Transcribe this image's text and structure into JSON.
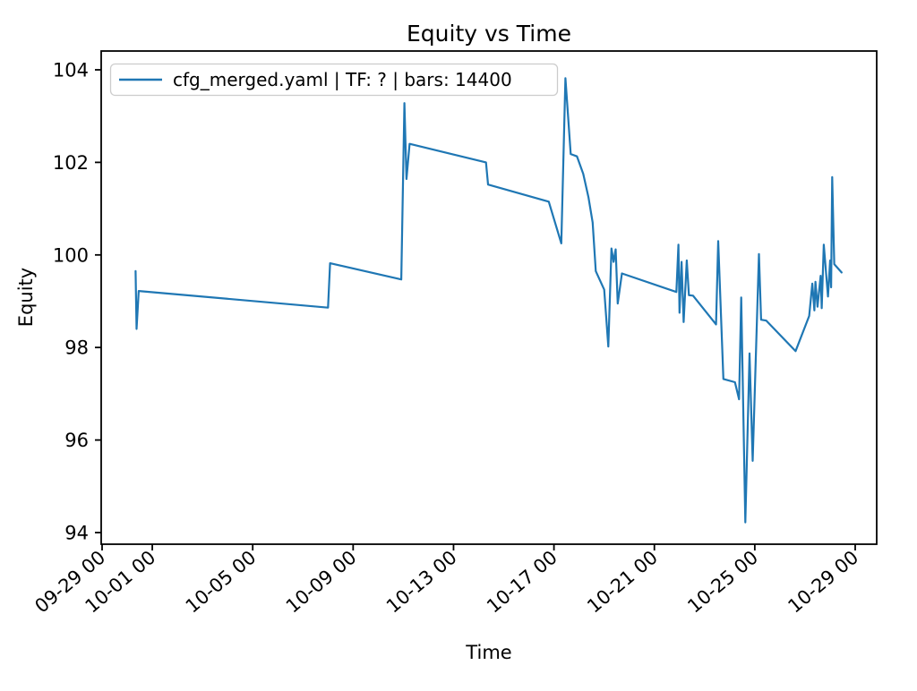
{
  "figure": {
    "background": "#ffffff"
  },
  "chart_data": {
    "type": "line",
    "title": "Equity vs Time",
    "xlabel": "Time",
    "ylabel": "Equity",
    "grid": false,
    "legend_position": "upper left",
    "legend_entries": [
      "cfg_merged.yaml | TF: ? | bars: 14400"
    ],
    "x_tick_labels": [
      "09-29 00",
      "10-01 00",
      "10-05 00",
      "10-09 00",
      "10-13 00",
      "10-17 00",
      "10-21 00",
      "10-25 00",
      "10-29 00"
    ],
    "y_tick_labels": [
      "94",
      "96",
      "98",
      "100",
      "102",
      "104"
    ],
    "y_ticks": [
      94,
      96,
      98,
      100,
      102,
      104
    ],
    "ylim": [
      93.74,
      104.42
    ],
    "xlim_days_from_0929": [
      -0.04,
      30.86
    ],
    "series": [
      {
        "name": "cfg_merged.yaml | TF: ? | bars: 14400",
        "color": "#1f77b4",
        "points": [
          [
            "09-30 08",
            99.65
          ],
          [
            "09-30 09",
            98.4
          ],
          [
            "09-30 11",
            99.22
          ],
          [
            "10-08 00",
            98.86
          ],
          [
            "10-08 02",
            99.82
          ],
          [
            "10-10 22",
            99.47
          ],
          [
            "10-11 01",
            103.28
          ],
          [
            "10-11 03",
            101.64
          ],
          [
            "10-11 06",
            102.4
          ],
          [
            "10-14 07",
            102.0
          ],
          [
            "10-14 09",
            101.52
          ],
          [
            "10-16 19",
            101.15
          ],
          [
            "10-17 07",
            100.25
          ],
          [
            "10-17 11",
            103.82
          ],
          [
            "10-17 16",
            102.18
          ],
          [
            "10-17 22",
            102.13
          ],
          [
            "10-18 04",
            101.75
          ],
          [
            "10-18 09",
            101.25
          ],
          [
            "10-18 13",
            100.7
          ],
          [
            "10-18 16",
            99.65
          ],
          [
            "10-19 00",
            99.25
          ],
          [
            "10-19 04",
            98.02
          ],
          [
            "10-19 07",
            100.14
          ],
          [
            "10-19 09",
            99.85
          ],
          [
            "10-19 11",
            100.12
          ],
          [
            "10-19 13",
            98.95
          ],
          [
            "10-19 17",
            99.6
          ],
          [
            "10-21 21",
            99.2
          ],
          [
            "10-21 23",
            100.22
          ],
          [
            "10-22 00",
            98.75
          ],
          [
            "10-22 02",
            99.85
          ],
          [
            "10-22 04",
            98.55
          ],
          [
            "10-22 07",
            99.88
          ],
          [
            "10-22 09",
            99.13
          ],
          [
            "10-22 13",
            99.12
          ],
          [
            "10-23 11",
            98.5
          ],
          [
            "10-23 13",
            100.3
          ],
          [
            "10-23 16",
            98.5
          ],
          [
            "10-23 18",
            97.32
          ],
          [
            "10-24 05",
            97.25
          ],
          [
            "10-24 09",
            96.88
          ],
          [
            "10-24 11",
            99.08
          ],
          [
            "10-24 15",
            94.22
          ],
          [
            "10-24 19",
            97.87
          ],
          [
            "10-24 22",
            95.55
          ],
          [
            "10-25 04",
            100.02
          ],
          [
            "10-25 06",
            98.6
          ],
          [
            "10-25 11",
            98.58
          ],
          [
            "10-26 15",
            97.92
          ],
          [
            "10-27 04",
            98.68
          ],
          [
            "10-27 07",
            99.38
          ],
          [
            "10-27 09",
            98.8
          ],
          [
            "10-27 10",
            99.42
          ],
          [
            "10-27 12",
            98.88
          ],
          [
            "10-27 15",
            99.55
          ],
          [
            "10-27 16",
            98.85
          ],
          [
            "10-27 18",
            100.22
          ],
          [
            "10-27 22",
            99.1
          ],
          [
            "10-28 00",
            99.88
          ],
          [
            "10-28 01",
            99.3
          ],
          [
            "10-28 02",
            101.68
          ],
          [
            "10-28 04",
            99.8
          ],
          [
            "10-28 11",
            99.62
          ]
        ]
      }
    ]
  }
}
